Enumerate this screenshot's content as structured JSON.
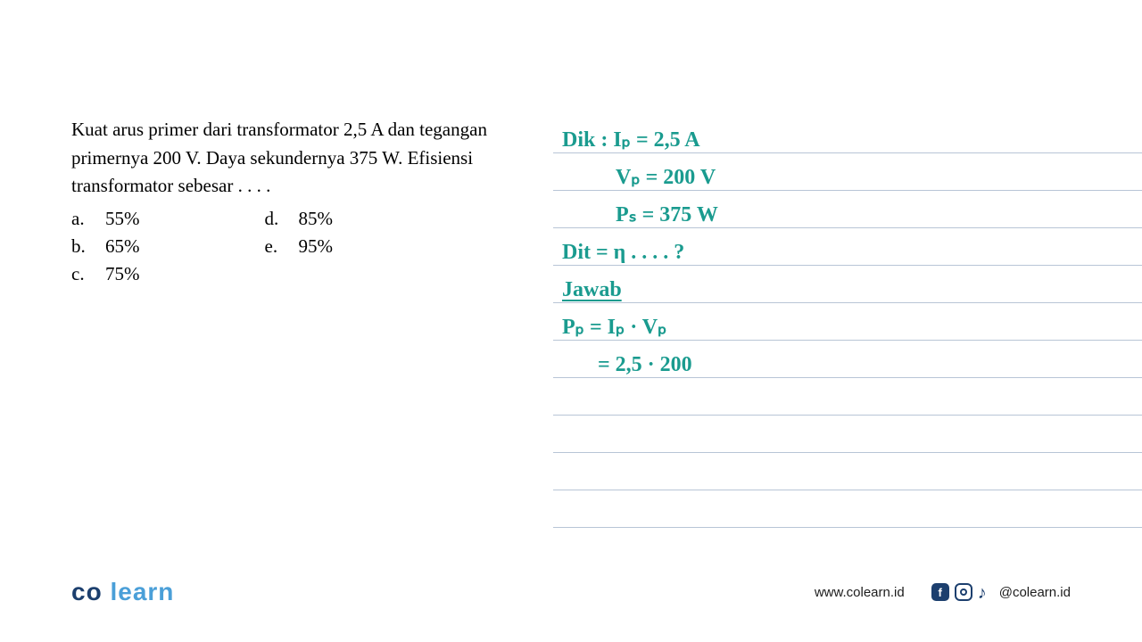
{
  "question": {
    "text": "Kuat arus primer dari transformator 2,5 A dan tegangan primernya 200 V. Daya sekundernya 375 W. Efisiensi transformator sebesar . . . .",
    "options_left": [
      {
        "letter": "a.",
        "value": "55%"
      },
      {
        "letter": "b.",
        "value": "65%"
      },
      {
        "letter": "c.",
        "value": "75%"
      }
    ],
    "options_right": [
      {
        "letter": "d.",
        "value": "85%"
      },
      {
        "letter": "e.",
        "value": "95%"
      }
    ]
  },
  "handwriting": {
    "line1": "Dik :  Iₚ = 2,5 A",
    "line2": "Vₚ = 200 V",
    "line3": "Pₛ = 375 W",
    "line4": "Dit =  η . . . . ?",
    "line5": "Jawab",
    "line6": "Pₚ = Iₚ · Vₚ",
    "line7": "= 2,5  · 200",
    "color": "#1a9b8f"
  },
  "footer": {
    "logo_co": "co",
    "logo_learn": "learn",
    "website": "www.colearn.id",
    "handle": "@colearn.id"
  },
  "colors": {
    "handwriting": "#1a9b8f",
    "line": "#b8c5d6",
    "logo_dark": "#1c3f6e",
    "logo_light": "#4a9fd8"
  }
}
